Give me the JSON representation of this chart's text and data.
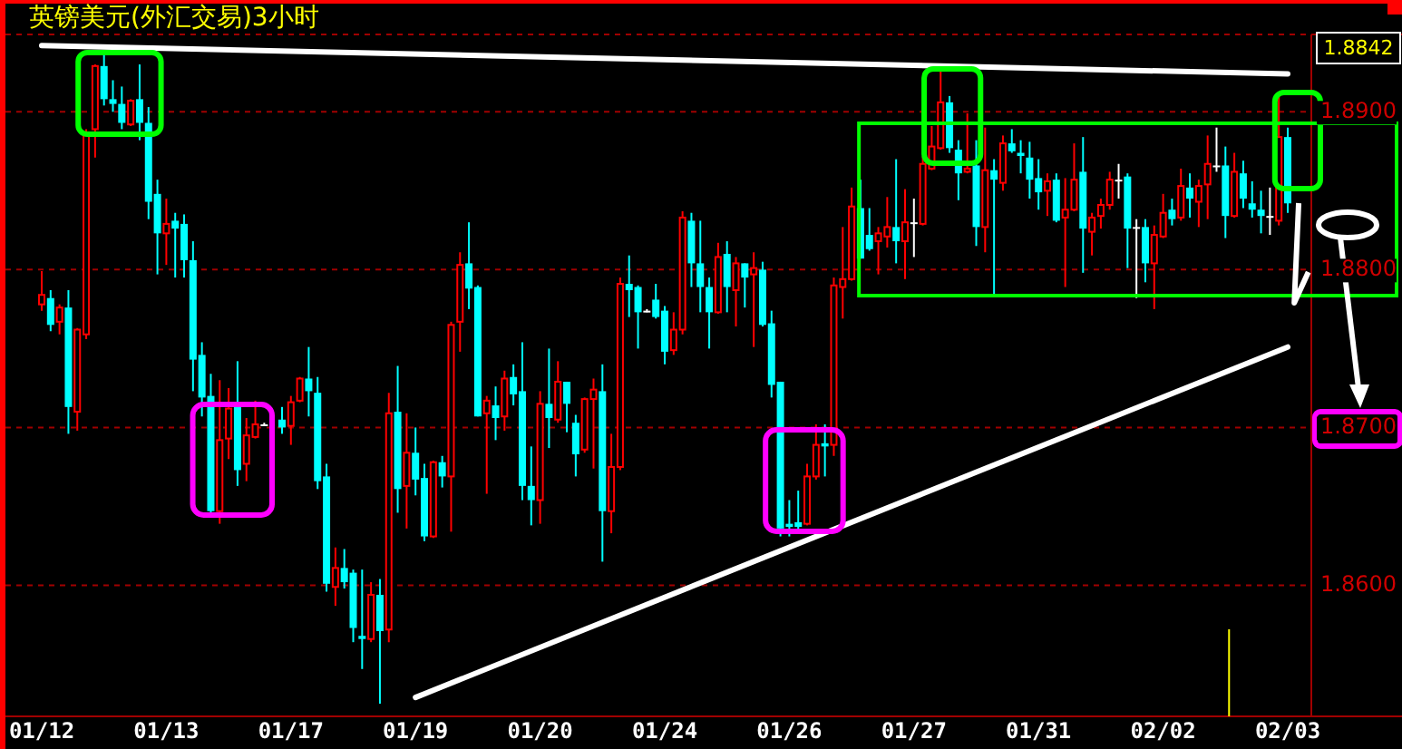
{
  "chart_data": {
    "type": "candlestick",
    "title": "英镑美元(外汇交易)3小时",
    "categories": [
      "01/12",
      null,
      null,
      null,
      null,
      null,
      null,
      null,
      null,
      null,
      null,
      null,
      null,
      null,
      "01/13",
      null,
      null,
      null,
      null,
      null,
      null,
      null,
      null,
      null,
      null,
      null,
      null,
      null,
      "01/17",
      null,
      null,
      null,
      null,
      null,
      null,
      null,
      null,
      null,
      null,
      null,
      null,
      null,
      "01/19",
      null,
      null,
      null,
      null,
      null,
      null,
      null,
      null,
      null,
      null,
      null,
      null,
      null,
      "01/20",
      null,
      null,
      null,
      null,
      null,
      null,
      null,
      null,
      null,
      null,
      null,
      null,
      null,
      "01/24",
      null,
      null,
      null,
      null,
      null,
      null,
      null,
      null,
      null,
      null,
      null,
      null,
      null,
      "01/26",
      null,
      null,
      null,
      null,
      null,
      null,
      null,
      null,
      null,
      null,
      null,
      null,
      null,
      "01/27",
      null,
      null,
      null,
      null,
      null,
      null,
      null,
      null,
      null,
      null,
      null,
      null,
      null,
      "01/31",
      null,
      null,
      null,
      null,
      null,
      null,
      null,
      null,
      null,
      null,
      null,
      null,
      null,
      "02/02",
      null,
      null,
      null,
      null,
      null,
      null,
      null,
      null,
      null,
      null,
      null,
      null,
      null,
      "02/03"
    ],
    "ohlc": [
      [
        1.8778,
        1.8799,
        1.8774,
        1.8784
      ],
      [
        1.8782,
        1.8787,
        1.8761,
        1.8765
      ],
      [
        1.8767,
        1.8778,
        1.8759,
        1.8776
      ],
      [
        1.8776,
        1.8787,
        1.8696,
        1.8713
      ],
      [
        1.871,
        1.8763,
        1.8698,
        1.8762
      ],
      [
        1.8759,
        1.8889,
        1.8756,
        1.8887
      ],
      [
        1.8889,
        1.893,
        1.8871,
        1.8929
      ],
      [
        1.8929,
        1.8936,
        1.8904,
        1.8908
      ],
      [
        1.8908,
        1.892,
        1.89,
        1.8905
      ],
      [
        1.8905,
        1.8916,
        1.8889,
        1.8893
      ],
      [
        1.8892,
        1.8908,
        1.8891,
        1.8907
      ],
      [
        1.8908,
        1.893,
        1.8882,
        1.8893
      ],
      [
        1.8893,
        1.8903,
        1.8832,
        1.8843
      ],
      [
        1.8848,
        1.8857,
        1.8797,
        1.8823
      ],
      [
        1.8823,
        1.8845,
        1.8803,
        1.8829
      ],
      [
        1.8831,
        1.8836,
        1.8795,
        1.8826
      ],
      [
        1.8829,
        1.8835,
        1.8795,
        1.8806
      ],
      [
        1.8806,
        1.8818,
        1.8723,
        1.8743
      ],
      [
        1.8746,
        1.8754,
        1.8707,
        1.8719
      ],
      [
        1.872,
        1.8734,
        1.8646,
        1.8647
      ],
      [
        1.8647,
        1.873,
        1.8639,
        1.8692
      ],
      [
        1.8693,
        1.8725,
        1.868,
        1.8712
      ],
      [
        1.8713,
        1.8742,
        1.8663,
        1.8673
      ],
      [
        1.8677,
        1.8706,
        1.8666,
        1.8695
      ],
      [
        1.8694,
        1.8717,
        1.8693,
        1.8702
      ],
      [
        1.8702,
        1.8703,
        1.8701,
        1.8702
      ],
      null,
      [
        1.8705,
        1.8713,
        1.8696,
        1.87
      ],
      [
        1.8701,
        1.872,
        1.8689,
        1.8716
      ],
      [
        1.8717,
        1.8732,
        1.8716,
        1.8731
      ],
      [
        1.8731,
        1.8751,
        1.8707,
        1.8723
      ],
      [
        1.8722,
        1.8732,
        1.8661,
        1.8666
      ],
      [
        1.8669,
        1.8677,
        1.8596,
        1.8601
      ],
      [
        1.8599,
        1.8624,
        1.8587,
        1.8611
      ],
      [
        1.8611,
        1.8623,
        1.8598,
        1.8602
      ],
      [
        1.8608,
        1.861,
        1.8564,
        1.8573
      ],
      [
        1.8568,
        1.861,
        1.8547,
        1.8566
      ],
      [
        1.8566,
        1.8602,
        1.8564,
        1.8594
      ],
      [
        1.8594,
        1.8604,
        1.8525,
        1.8571
      ],
      [
        1.8572,
        1.8722,
        1.8564,
        1.8709
      ],
      [
        1.871,
        1.8739,
        1.8646,
        1.8661
      ],
      [
        1.8663,
        1.8709,
        1.8636,
        1.8684
      ],
      [
        1.8684,
        1.87,
        1.8657,
        1.8667
      ],
      [
        1.8668,
        1.8677,
        1.8628,
        1.8631
      ],
      [
        1.8631,
        1.8679,
        1.863,
        1.8678
      ],
      [
        1.8678,
        1.8682,
        1.8662,
        1.8669
      ],
      [
        1.8669,
        1.8767,
        1.8634,
        1.8765
      ],
      [
        1.8767,
        1.8811,
        1.8748,
        1.8803
      ],
      [
        1.8804,
        1.883,
        1.8775,
        1.8788
      ],
      [
        1.8789,
        1.879,
        1.8707,
        1.8707
      ],
      [
        1.8709,
        1.872,
        1.8658,
        1.8717
      ],
      [
        1.8714,
        1.8726,
        1.8692,
        1.8706
      ],
      [
        1.8707,
        1.8736,
        1.8698,
        1.8731
      ],
      [
        1.8732,
        1.874,
        1.8714,
        1.8721
      ],
      [
        1.8723,
        1.8754,
        1.8654,
        1.8663
      ],
      [
        1.8663,
        1.8688,
        1.8638,
        1.8654
      ],
      [
        1.8654,
        1.8723,
        1.8639,
        1.8715
      ],
      [
        1.8715,
        1.875,
        1.8687,
        1.8706
      ],
      [
        1.8705,
        1.8742,
        1.8703,
        1.8729
      ],
      [
        1.8729,
        1.8729,
        1.8697,
        1.8715
      ],
      [
        1.8703,
        1.8708,
        1.8669,
        1.8683
      ],
      [
        1.8686,
        1.8719,
        1.8684,
        1.8718
      ],
      [
        1.8718,
        1.8731,
        1.8674,
        1.8724
      ],
      [
        1.8723,
        1.874,
        1.8615,
        1.8647
      ],
      [
        1.8647,
        1.8696,
        1.8633,
        1.8675
      ],
      [
        1.8675,
        1.8795,
        1.8673,
        1.8791
      ],
      [
        1.8791,
        1.8809,
        1.877,
        1.8787
      ],
      [
        1.8789,
        1.879,
        1.875,
        1.8773
      ],
      [
        1.8774,
        1.8775,
        1.8773,
        1.8774
      ],
      [
        1.8781,
        1.8791,
        1.8769,
        1.877
      ],
      [
        1.8774,
        1.8777,
        1.874,
        1.8748
      ],
      [
        1.8749,
        1.8773,
        1.8746,
        1.8762
      ],
      [
        1.8762,
        1.8837,
        1.8759,
        1.8833
      ],
      [
        1.8831,
        1.8836,
        1.8789,
        1.8804
      ],
      [
        1.8804,
        1.8831,
        1.8773,
        1.8789
      ],
      [
        1.8789,
        1.8795,
        1.875,
        1.8773
      ],
      [
        1.8773,
        1.8817,
        1.8772,
        1.8808
      ],
      [
        1.881,
        1.8818,
        1.8773,
        1.8789
      ],
      [
        1.8787,
        1.8808,
        1.8764,
        1.8804
      ],
      [
        1.8804,
        1.8804,
        1.8776,
        1.8795
      ],
      [
        1.8797,
        1.8811,
        1.8751,
        1.8801
      ],
      [
        1.88,
        1.8805,
        1.8764,
        1.8765
      ],
      [
        1.8766,
        1.8774,
        1.8719,
        1.8727
      ],
      [
        1.8729,
        1.8729,
        1.8631,
        1.8636
      ],
      [
        1.8639,
        1.8654,
        1.8631,
        1.8637
      ],
      [
        1.864,
        1.866,
        1.8634,
        1.8637
      ],
      [
        1.8639,
        1.8677,
        1.8638,
        1.8669
      ],
      [
        1.8669,
        1.8702,
        1.8667,
        1.8689
      ],
      [
        1.869,
        1.8702,
        1.8669,
        1.8688
      ],
      [
        1.8689,
        1.8795,
        1.8682,
        1.879
      ],
      [
        1.8789,
        1.8827,
        1.8769,
        1.8794
      ],
      [
        1.8794,
        1.8852,
        1.8793,
        1.884
      ],
      [
        1.8839,
        1.8857,
        1.8807,
        1.8807
      ],
      [
        1.8822,
        1.8839,
        1.8812,
        1.8813
      ],
      [
        1.8818,
        1.8827,
        1.8797,
        1.8823
      ],
      [
        1.8821,
        1.8846,
        1.8814,
        1.8827
      ],
      [
        1.8827,
        1.887,
        1.8804,
        1.8818
      ],
      [
        1.8818,
        1.8851,
        1.8794,
        1.883
      ],
      [
        1.883,
        1.8845,
        1.8808,
        1.883
      ],
      [
        1.8829,
        1.8872,
        1.8828,
        1.8867
      ],
      [
        1.8864,
        1.8891,
        1.8863,
        1.8878
      ],
      [
        1.8877,
        1.8926,
        1.8876,
        1.8906
      ],
      [
        1.8906,
        1.891,
        1.8874,
        1.8877
      ],
      [
        1.8876,
        1.8882,
        1.8844,
        1.8861
      ],
      [
        1.8862,
        1.8899,
        1.8861,
        1.8864
      ],
      [
        1.8866,
        1.8882,
        1.8815,
        1.8827
      ],
      [
        1.8827,
        1.889,
        1.8811,
        1.8863
      ],
      [
        1.8863,
        1.887,
        1.8784,
        1.8857
      ],
      [
        1.8855,
        1.8885,
        1.885,
        1.888
      ],
      [
        1.888,
        1.8889,
        1.8874,
        1.8875
      ],
      [
        1.8874,
        1.8882,
        1.8861,
        1.8872
      ],
      [
        1.8871,
        1.8881,
        1.8845,
        1.8857
      ],
      [
        1.8858,
        1.887,
        1.8838,
        1.8849
      ],
      [
        1.885,
        1.8861,
        1.8834,
        1.8856
      ],
      [
        1.8857,
        1.8861,
        1.883,
        1.8831
      ],
      [
        1.8833,
        1.8858,
        1.8789,
        1.8838
      ],
      [
        1.8838,
        1.888,
        1.8837,
        1.8857
      ],
      [
        1.8862,
        1.8884,
        1.8798,
        1.8826
      ],
      [
        1.8824,
        1.8836,
        1.8809,
        1.8833
      ],
      [
        1.8834,
        1.8845,
        1.8826,
        1.8841
      ],
      [
        1.8841,
        1.8862,
        1.8838,
        1.8857
      ],
      [
        1.8857,
        1.8867,
        1.8845,
        1.8857
      ],
      [
        1.8859,
        1.8861,
        1.8801,
        1.8826
      ],
      [
        1.8827,
        1.8832,
        1.8782,
        1.8827
      ],
      [
        1.8827,
        1.8832,
        1.8792,
        1.8804
      ],
      [
        1.8804,
        1.8828,
        1.8775,
        1.8822
      ],
      [
        1.8821,
        1.8848,
        1.882,
        1.8836
      ],
      [
        1.8838,
        1.8845,
        1.8828,
        1.8832
      ],
      [
        1.8833,
        1.8864,
        1.8831,
        1.8853
      ],
      [
        1.8852,
        1.8861,
        1.8833,
        1.8845
      ],
      [
        1.8843,
        1.8857,
        1.8827,
        1.8853
      ],
      [
        1.8854,
        1.8885,
        1.8832,
        1.8867
      ],
      [
        1.8866,
        1.889,
        1.8862,
        1.8866
      ],
      [
        1.8866,
        1.8878,
        1.882,
        1.8834
      ],
      [
        1.8834,
        1.8874,
        1.8833,
        1.8862
      ],
      [
        1.8861,
        1.8869,
        1.8839,
        1.8845
      ],
      [
        1.8842,
        1.8856,
        1.8833,
        1.8838
      ],
      [
        1.8838,
        1.885,
        1.8823,
        1.8834
      ],
      [
        1.8834,
        1.8852,
        1.8822,
        1.8834
      ],
      [
        1.8831,
        1.891,
        1.8828,
        1.8884
      ],
      [
        1.8884,
        1.889,
        1.8836,
        1.8842
      ]
    ],
    "series": [
      {
        "type": "line",
        "color": "#ffffff",
        "x": [
          "01/12",
          "02/03"
        ],
        "values": [
          1.8942,
          1.8924
        ]
      },
      {
        "type": "line",
        "color": "#ffffff",
        "x": [
          "01/19",
          "02/03"
        ],
        "values": [
          1.8529,
          1.8751
        ]
      }
    ],
    "ylim": [
      1.8517,
      1.8949
    ],
    "yticks": [
      {
        "value": 1.86,
        "label": "1.8600"
      },
      {
        "value": 1.87,
        "label": "1.8700"
      },
      {
        "value": 1.88,
        "label": "1.8800"
      },
      {
        "value": 1.89,
        "label": "1.8900"
      }
    ],
    "grid": "y",
    "annotations": [
      "1.8842"
    ]
  }
}
